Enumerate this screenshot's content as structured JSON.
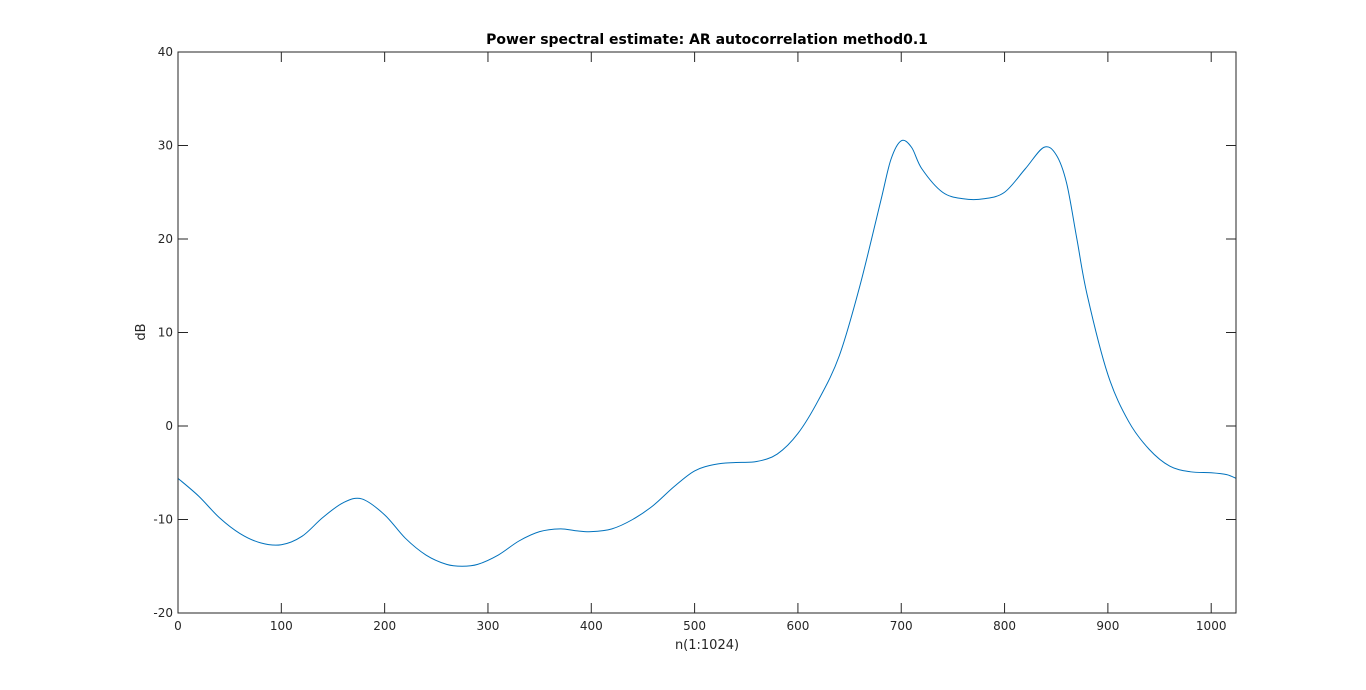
{
  "chart_data": {
    "type": "line",
    "title": "Power spectral estimate: AR autocorrelation method0.1",
    "xlabel": "n(1:1024)",
    "ylabel": "dB",
    "xlim": [
      0,
      1024
    ],
    "ylim": [
      -20,
      40
    ],
    "xticks": [
      0,
      100,
      200,
      300,
      400,
      500,
      600,
      700,
      800,
      900,
      1000
    ],
    "yticks": [
      -20,
      -10,
      0,
      10,
      20,
      30,
      40
    ],
    "grid": false,
    "line_color": "#0072bd",
    "series": [
      {
        "x": [
          0,
          20,
          40,
          60,
          80,
          100,
          120,
          140,
          160,
          178,
          200,
          220,
          240,
          260,
          275,
          290,
          310,
          330,
          350,
          370,
          385,
          400,
          420,
          440,
          460,
          480,
          500,
          520,
          540,
          560,
          580,
          600,
          620,
          640,
          660,
          680,
          690,
          700,
          710,
          720,
          740,
          760,
          780,
          800,
          820,
          838,
          850,
          860,
          870,
          880,
          900,
          920,
          940,
          960,
          980,
          1000,
          1015,
          1024
        ],
        "y": [
          -5.6,
          -7.5,
          -9.8,
          -11.5,
          -12.5,
          -12.7,
          -11.8,
          -9.8,
          -8.2,
          -7.8,
          -9.5,
          -12.0,
          -13.8,
          -14.8,
          -15.0,
          -14.8,
          -13.8,
          -12.3,
          -11.3,
          -11.0,
          -11.2,
          -11.3,
          -11.0,
          -10.0,
          -8.5,
          -6.5,
          -4.8,
          -4.1,
          -3.9,
          -3.8,
          -3.0,
          -0.8,
          2.8,
          7.5,
          15.0,
          24.0,
          28.5,
          30.5,
          29.8,
          27.5,
          25.0,
          24.3,
          24.3,
          25.0,
          27.5,
          29.8,
          29.0,
          26.0,
          20.0,
          14.0,
          5.5,
          0.5,
          -2.5,
          -4.3,
          -4.9,
          -5.0,
          -5.2,
          -5.6
        ]
      }
    ]
  }
}
